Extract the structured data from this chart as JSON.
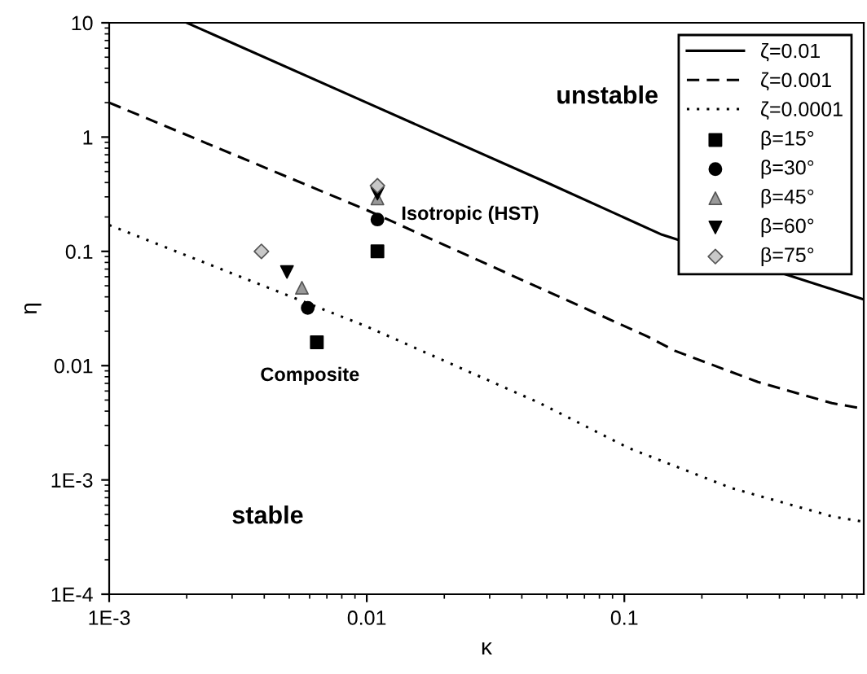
{
  "chart_data": {
    "type": "line",
    "xlabel": "κ",
    "ylabel": "η",
    "log": "xy",
    "xlim": [
      0.001,
      0.85
    ],
    "ylim": [
      0.0001,
      10
    ],
    "xticks": [
      {
        "value": 0.001,
        "label": "1E-3"
      },
      0.01,
      0.1
    ],
    "yticks": [
      {
        "value": 0.0001,
        "label": "1E-4"
      },
      {
        "value": 0.001,
        "label": "1E-3"
      },
      0.01,
      0.1,
      1,
      10
    ],
    "grid": false,
    "legend": "top right",
    "series": [
      {
        "name": "ζ=0.01",
        "color": "#000000",
        "line_style": "solid",
        "marker": "none",
        "x": [
          0.002,
          0.01,
          0.05,
          0.14,
          0.85
        ],
        "values": [
          10,
          2.0,
          0.4,
          0.14,
          0.038
        ]
      },
      {
        "name": "ζ=0.001",
        "color": "#000000",
        "line_style": "dashed",
        "marker": "none",
        "x": [
          0.001,
          0.01,
          0.123,
          0.157,
          0.33,
          0.64,
          0.85
        ],
        "values": [
          2.0,
          0.23,
          0.018,
          0.0135,
          0.0072,
          0.0047,
          0.0042
        ]
      },
      {
        "name": "ζ=0.0001",
        "color": "#000000",
        "line_style": "dotted",
        "marker": "none",
        "x": [
          0.001,
          0.01,
          0.047,
          0.104,
          0.26,
          0.64,
          0.85
        ],
        "values": [
          0.17,
          0.022,
          0.0047,
          0.0019,
          0.00085,
          0.00048,
          0.00043
        ]
      },
      {
        "name": "β=15°",
        "type": "scatter",
        "color": "#000000",
        "marker": "square",
        "x": [
          0.011,
          0.0064
        ],
        "values": [
          0.1,
          0.016
        ]
      },
      {
        "name": "β=30°",
        "type": "scatter",
        "color": "#000000",
        "marker": "circle",
        "x": [
          0.011,
          0.0059
        ],
        "values": [
          0.19,
          0.032
        ]
      },
      {
        "name": "β=45°",
        "type": "scatter",
        "color": "#999999",
        "marker": "triangle",
        "x": [
          0.011,
          0.0056
        ],
        "values": [
          0.29,
          0.048
        ]
      },
      {
        "name": "β=60°",
        "type": "scatter",
        "color": "#000000",
        "marker": "triangle_down",
        "x": [
          0.011,
          0.0049
        ],
        "values": [
          0.32,
          0.066
        ]
      },
      {
        "name": "β=75°",
        "type": "scatter",
        "color": "#c8c8c8",
        "marker": "diamond",
        "x": [
          0.011,
          0.0039
        ],
        "values": [
          0.375,
          0.1
        ]
      }
    ],
    "annotations": [
      "unstable",
      "stable",
      "Isotropic (HST)",
      "Composite"
    ]
  }
}
